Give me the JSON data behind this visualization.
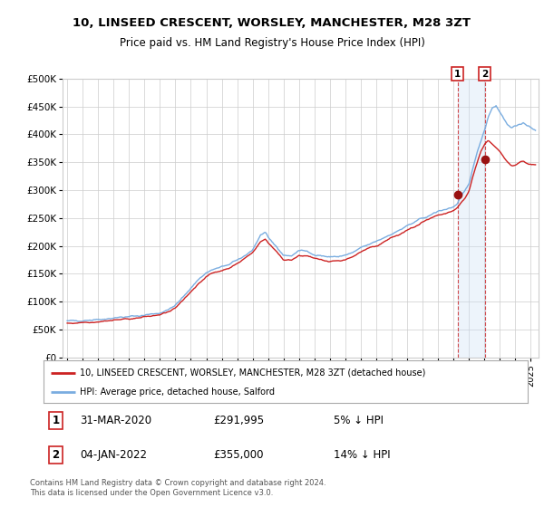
{
  "title": "10, LINSEED CRESCENT, WORSLEY, MANCHESTER, M28 3ZT",
  "subtitle": "Price paid vs. HM Land Registry's House Price Index (HPI)",
  "legend_line1": "10, LINSEED CRESCENT, WORSLEY, MANCHESTER, M28 3ZT (detached house)",
  "legend_line2": "HPI: Average price, detached house, Salford",
  "annotation1_label": "1",
  "annotation1_date": "31-MAR-2020",
  "annotation1_price": "£291,995",
  "annotation1_hpi": "5% ↓ HPI",
  "annotation2_label": "2",
  "annotation2_date": "04-JAN-2022",
  "annotation2_price": "£355,000",
  "annotation2_hpi": "14% ↓ HPI",
  "footer": "Contains HM Land Registry data © Crown copyright and database right 2024.\nThis data is licensed under the Open Government Licence v3.0.",
  "hpi_color": "#7aade0",
  "price_color": "#cc2222",
  "dot_color": "#991111",
  "point1_year": 2020.25,
  "point1_value": 291995,
  "point2_year": 2022.01,
  "point2_value": 355000,
  "shade_start_year": 2020.25,
  "shade_end_year": 2022.01,
  "ylim": [
    0,
    500000
  ],
  "xlim_start": 1994.7,
  "xlim_end": 2025.5,
  "background_color": "#ffffff",
  "grid_color": "#cccccc",
  "shade_color": "#cce0f5"
}
